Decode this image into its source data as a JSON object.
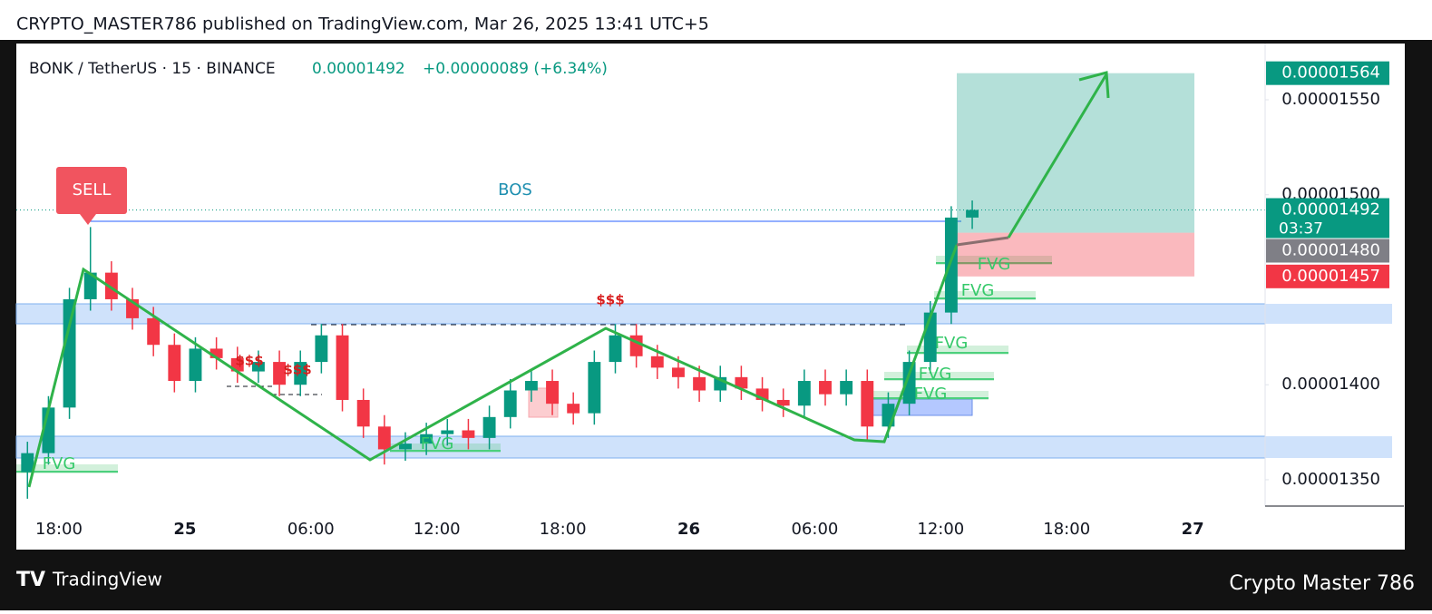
{
  "header": {
    "publisher": "CRYPTO_MASTER786 published on TradingView.com, Mar 26, 2025 13:41 UTC+5"
  },
  "footer": {
    "brand": "TradingView",
    "watermark": "Crypto Master 786"
  },
  "chart_data": {
    "type": "candlestick",
    "symbol": "BONK / TetherUS · 15 · BINANCE",
    "last_price": 1.492e-05,
    "change_label": "+0.00000089 (+6.34%)",
    "countdown": "03:37",
    "x": [
      -7.5,
      -6.5,
      -5.5,
      -4.5,
      -3.5,
      -2.5,
      -1.5,
      -0.5,
      0.5,
      1.5,
      2.5,
      3.5,
      4.5,
      5.5,
      6.5,
      7.5,
      8.5,
      9.5,
      10.5,
      11.5,
      12.5,
      13.5,
      14.5,
      15.5,
      16.5,
      17.5,
      18.5,
      19.5,
      20.5,
      21.5,
      22.5,
      23.5,
      24.5,
      25.5,
      26.5,
      27.5,
      28.5,
      29.5,
      30.5,
      31.5,
      32.5,
      33.5,
      34.5,
      35.5,
      36.5,
      37.5
    ],
    "open": [
      1.354e-05,
      1.364e-05,
      1.388e-05,
      1.445e-05,
      1.459e-05,
      1.445e-05,
      1.435e-05,
      1.421e-05,
      1.402e-05,
      1.419e-05,
      1.414e-05,
      1.407e-05,
      1.412e-05,
      1.4e-05,
      1.412e-05,
      1.426e-05,
      1.392e-05,
      1.378e-05,
      1.366e-05,
      1.369e-05,
      1.374e-05,
      1.376e-05,
      1.372e-05,
      1.383e-05,
      1.397e-05,
      1.402e-05,
      1.39e-05,
      1.385e-05,
      1.412e-05,
      1.426e-05,
      1.415e-05,
      1.409e-05,
      1.404e-05,
      1.397e-05,
      1.404e-05,
      1.398e-05,
      1.392e-05,
      1.389e-05,
      1.402e-05,
      1.395e-05,
      1.402e-05,
      1.378e-05,
      1.39e-05,
      1.412e-05,
      1.438e-05,
      1.488e-05
    ],
    "high": [
      1.37e-05,
      1.394e-05,
      1.451e-05,
      1.483e-05,
      1.465e-05,
      1.451e-05,
      1.441e-05,
      1.427e-05,
      1.425e-05,
      1.425e-05,
      1.42e-05,
      1.418e-05,
      1.418e-05,
      1.418e-05,
      1.432e-05,
      1.432e-05,
      1.398e-05,
      1.384e-05,
      1.375e-05,
      1.38e-05,
      1.382e-05,
      1.382e-05,
      1.389e-05,
      1.403e-05,
      1.408e-05,
      1.408e-05,
      1.396e-05,
      1.418e-05,
      1.432e-05,
      1.432e-05,
      1.421e-05,
      1.415e-05,
      1.41e-05,
      1.41e-05,
      1.41e-05,
      1.404e-05,
      1.398e-05,
      1.408e-05,
      1.408e-05,
      1.408e-05,
      1.408e-05,
      1.396e-05,
      1.418e-05,
      1.444e-05,
      1.494e-05,
      1.497e-05
    ],
    "low": [
      1.34e-05,
      1.358e-05,
      1.382e-05,
      1.439e-05,
      1.439e-05,
      1.429e-05,
      1.415e-05,
      1.396e-05,
      1.396e-05,
      1.408e-05,
      1.401e-05,
      1.401e-05,
      1.394e-05,
      1.394e-05,
      1.406e-05,
      1.386e-05,
      1.372e-05,
      1.358e-05,
      1.36e-05,
      1.363e-05,
      1.368e-05,
      1.366e-05,
      1.366e-05,
      1.377e-05,
      1.391e-05,
      1.384e-05,
      1.379e-05,
      1.379e-05,
      1.406e-05,
      1.409e-05,
      1.403e-05,
      1.398e-05,
      1.391e-05,
      1.391e-05,
      1.392e-05,
      1.386e-05,
      1.383e-05,
      1.383e-05,
      1.389e-05,
      1.389e-05,
      1.37e-05,
      1.372e-05,
      1.384e-05,
      1.406e-05,
      1.432e-05,
      1.482e-05
    ],
    "close": [
      1.364e-05,
      1.388e-05,
      1.445e-05,
      1.459e-05,
      1.445e-05,
      1.435e-05,
      1.421e-05,
      1.402e-05,
      1.419e-05,
      1.414e-05,
      1.407e-05,
      1.412e-05,
      1.4e-05,
      1.412e-05,
      1.426e-05,
      1.392e-05,
      1.378e-05,
      1.366e-05,
      1.369e-05,
      1.374e-05,
      1.376e-05,
      1.372e-05,
      1.383e-05,
      1.397e-05,
      1.402e-05,
      1.39e-05,
      1.385e-05,
      1.412e-05,
      1.426e-05,
      1.415e-05,
      1.409e-05,
      1.404e-05,
      1.397e-05,
      1.404e-05,
      1.398e-05,
      1.392e-05,
      1.389e-05,
      1.402e-05,
      1.395e-05,
      1.402e-05,
      1.378e-05,
      1.39e-05,
      1.412e-05,
      1.438e-05,
      1.488e-05,
      1.492e-05
    ],
    "up_color": "#089981",
    "down_color": "#f23645",
    "xlim": [
      -8.03,
      51.45
    ],
    "xticks": [
      {
        "value": -6,
        "label": "18:00"
      },
      {
        "value": 0,
        "label": "25"
      },
      {
        "value": 6,
        "label": "06:00"
      },
      {
        "value": 12,
        "label": "12:00"
      },
      {
        "value": 18,
        "label": "18:00"
      },
      {
        "value": 24,
        "label": "26"
      },
      {
        "value": 30,
        "label": "06:00"
      },
      {
        "value": 36,
        "label": "12:00"
      },
      {
        "value": 42,
        "label": "18:00"
      },
      {
        "value": 48,
        "label": "27"
      }
    ],
    "ylim": [
      1.3137e-05,
      1.5796e-05
    ],
    "yticks": [
      {
        "value": 1.35e-05,
        "label": "0.00001350"
      },
      {
        "value": 1.4e-05,
        "label": "0.00001400"
      },
      {
        "value": 1.5e-05,
        "label": "0.00001500"
      },
      {
        "value": 1.55e-05,
        "label": "0.00001550"
      }
    ],
    "position": {
      "target": 1.564e-05,
      "entry": {
        "value": 1.48e-05,
        "label": "0.00001480"
      },
      "stop": 1.457e-05
    },
    "annotations": [
      "SELL",
      "BOS",
      "$$$",
      "$$$",
      "$$$",
      "FVG",
      "FVG",
      "FVG",
      "FVG",
      "FVG",
      "FVG",
      "FVG"
    ]
  }
}
